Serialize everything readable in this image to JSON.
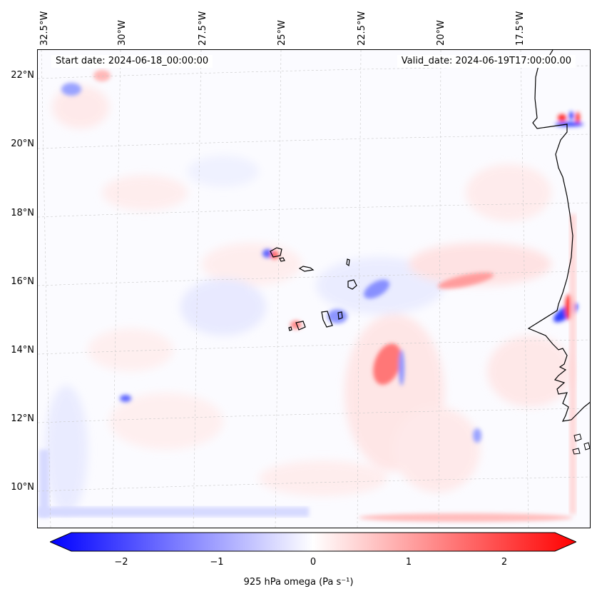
{
  "map": {
    "start_date": "Start date: 2024-06-18_00:00:00",
    "valid_date": "Valid_date: 2024-06-19T17:00:00.00",
    "lon_labels": [
      "32.5°W",
      "30°W",
      "27.5°W",
      "25°W",
      "22.5°W",
      "20°W",
      "17.5°W"
    ],
    "lat_labels": [
      "22°N",
      "20°N",
      "18°N",
      "16°N",
      "14°N",
      "12°N",
      "10°N"
    ],
    "gridlines": true,
    "colors": {
      "negative": "#0000ff",
      "zero": "#ffffff",
      "positive": "#ff0000",
      "coast": "#000000"
    },
    "features": [
      "Cabo Verde islands",
      "West African coastline"
    ]
  },
  "colorbar": {
    "label": "925 hPa omega (Pa s⁻¹)",
    "ticks": [
      "−2",
      "−1",
      "0",
      "1",
      "2"
    ],
    "range": [
      -2.6,
      2.6
    ],
    "extend": "both",
    "colormap": "bwr"
  }
}
